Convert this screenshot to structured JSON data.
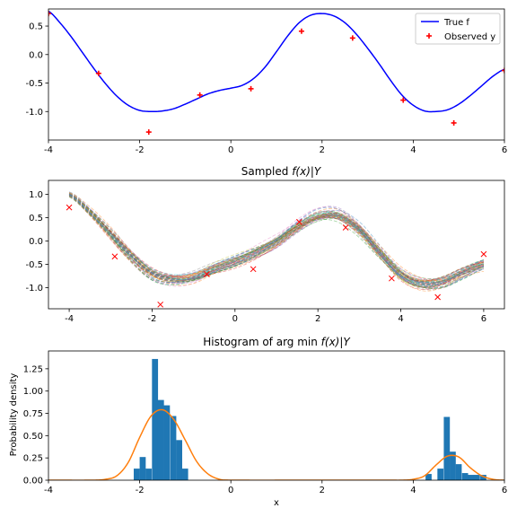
{
  "chart_data": [
    {
      "type": "line",
      "title": "",
      "xlim": [
        -4,
        6
      ],
      "ylim": [
        -1.5,
        0.8
      ],
      "xticks": [
        "-4",
        "-2",
        "0",
        "2",
        "4",
        "6"
      ],
      "xtick_values": [
        -4,
        -2,
        0,
        2,
        4,
        6
      ],
      "yticks": [
        "0.5",
        "0.0",
        "-0.5",
        "-1.0"
      ],
      "ytick_values": [
        0.5,
        0.0,
        -0.5,
        -1.0
      ],
      "legend_position": "top-right",
      "series": [
        {
          "name": "True f",
          "kind": "line",
          "color": "#0000ff",
          "x": [
            -4.0,
            -3.75,
            -3.5,
            -3.25,
            -3.0,
            -2.75,
            -2.5,
            -2.25,
            -2.0,
            -1.75,
            -1.5,
            -1.25,
            -1.0,
            -0.75,
            -0.5,
            -0.25,
            0.0,
            0.25,
            0.5,
            0.75,
            1.0,
            1.25,
            1.5,
            1.75,
            2.0,
            2.25,
            2.5,
            2.75,
            3.0,
            3.25,
            3.5,
            3.75,
            4.0,
            4.25,
            4.5,
            4.75,
            5.0,
            5.25,
            5.5,
            5.75,
            6.0
          ],
          "y": [
            0.76,
            0.56,
            0.31,
            0.03,
            -0.25,
            -0.51,
            -0.73,
            -0.89,
            -0.98,
            -1.0,
            -0.99,
            -0.95,
            -0.87,
            -0.78,
            -0.69,
            -0.63,
            -0.59,
            -0.54,
            -0.42,
            -0.22,
            0.05,
            0.33,
            0.56,
            0.69,
            0.72,
            0.68,
            0.56,
            0.36,
            0.11,
            -0.16,
            -0.45,
            -0.71,
            -0.89,
            -0.99,
            -1.0,
            -0.97,
            -0.87,
            -0.72,
            -0.55,
            -0.38,
            -0.26
          ]
        },
        {
          "name": "Observed y",
          "kind": "scatter",
          "marker": "+",
          "color": "#ff0000",
          "x": [
            -4.0,
            -2.9,
            -1.8,
            -0.68,
            0.44,
            1.55,
            2.67,
            3.78,
            4.89,
            6.0
          ],
          "y": [
            0.72,
            -0.33,
            -1.36,
            -0.71,
            -0.6,
            0.41,
            0.29,
            -0.8,
            -1.2,
            -0.28
          ]
        }
      ]
    },
    {
      "type": "line",
      "title_prefix": "Sampled ",
      "title_math": "f(x)|Y",
      "xlim": [
        -4.5,
        6.5
      ],
      "ylim": [
        -1.45,
        1.3
      ],
      "xticks": [
        "-4",
        "-2",
        "0",
        "2",
        "4",
        "6"
      ],
      "xtick_values": [
        -4,
        -2,
        0,
        2,
        4,
        6
      ],
      "yticks": [
        "1.0",
        "0.5",
        "0.0",
        "-0.5",
        "-1.0"
      ],
      "ytick_values": [
        1.0,
        0.5,
        0.0,
        -0.5,
        -1.0
      ],
      "sample_count": 60,
      "sample_colors": [
        "#1f77b4",
        "#ff7f0e",
        "#2ca02c",
        "#d62728",
        "#9467bd",
        "#8c564b",
        "#e377c2",
        "#7f7f7f",
        "#bcbd22",
        "#17becf"
      ],
      "mean_curve": {
        "x": [
          -4.0,
          -3.5,
          -3.0,
          -2.5,
          -2.0,
          -1.5,
          -1.0,
          -0.5,
          0.0,
          0.5,
          1.0,
          1.5,
          2.0,
          2.5,
          3.0,
          3.5,
          4.0,
          4.5,
          5.0,
          5.5,
          6.0
        ],
        "y": [
          1.0,
          0.62,
          0.15,
          -0.33,
          -0.7,
          -0.82,
          -0.78,
          -0.6,
          -0.44,
          -0.25,
          -0.01,
          0.3,
          0.53,
          0.55,
          0.25,
          -0.25,
          -0.72,
          -0.92,
          -0.88,
          -0.68,
          -0.5
        ]
      },
      "observations": {
        "marker": "x",
        "color": "#ff0000",
        "x": [
          -4.0,
          -2.9,
          -1.8,
          -0.68,
          0.44,
          1.55,
          2.67,
          3.78,
          4.89,
          6.0
        ],
        "y": [
          0.72,
          -0.33,
          -1.36,
          -0.71,
          -0.6,
          0.41,
          0.29,
          -0.8,
          -1.2,
          -0.28
        ]
      }
    },
    {
      "type": "bar",
      "title_prefix": "Histogram of arg min ",
      "title_math": "f(x)|Y",
      "xlabel": "x",
      "ylabel": "Probability density",
      "xlim": [
        -4,
        6
      ],
      "ylim": [
        0,
        1.45
      ],
      "xticks": [
        "-4",
        "-2",
        "0",
        "2",
        "4",
        "6"
      ],
      "xtick_values": [
        -4,
        -2,
        0,
        2,
        4,
        6
      ],
      "yticks": [
        "0.00",
        "0.25",
        "0.50",
        "0.75",
        "1.00",
        "1.25"
      ],
      "ytick_values": [
        0.0,
        0.25,
        0.5,
        0.75,
        1.0,
        1.25
      ],
      "bar_color": "#1f77b4",
      "bin_width": 0.133,
      "bin_starts": [
        -2.13,
        -2.0,
        -1.87,
        -1.73,
        -1.6,
        -1.47,
        -1.33,
        -1.2,
        -1.07,
        -0.93,
        -0.8,
        4.27,
        4.4,
        4.53,
        4.67,
        4.8,
        4.93,
        5.07,
        5.2,
        5.33,
        5.47
      ],
      "density": [
        0.13,
        0.26,
        0.13,
        1.36,
        0.9,
        0.84,
        0.72,
        0.45,
        0.13,
        0.0,
        0.0,
        0.07,
        0.0,
        0.13,
        0.71,
        0.32,
        0.18,
        0.08,
        0.06,
        0.06,
        0.06
      ],
      "kde": {
        "color": "#ff7f0e",
        "x": [
          -4.0,
          -3.0,
          -2.75,
          -2.5,
          -2.25,
          -2.0,
          -1.75,
          -1.5,
          -1.25,
          -1.0,
          -0.75,
          -0.5,
          -0.25,
          0.0,
          2.0,
          3.5,
          3.75,
          4.0,
          4.25,
          4.5,
          4.75,
          5.0,
          5.25,
          5.5,
          5.75,
          6.0
        ],
        "y": [
          0.0,
          0.0,
          0.01,
          0.05,
          0.2,
          0.48,
          0.72,
          0.79,
          0.68,
          0.45,
          0.21,
          0.07,
          0.01,
          0.0,
          0.0,
          0.0,
          0.0,
          0.01,
          0.05,
          0.17,
          0.27,
          0.26,
          0.14,
          0.05,
          0.01,
          0.0
        ]
      }
    }
  ]
}
